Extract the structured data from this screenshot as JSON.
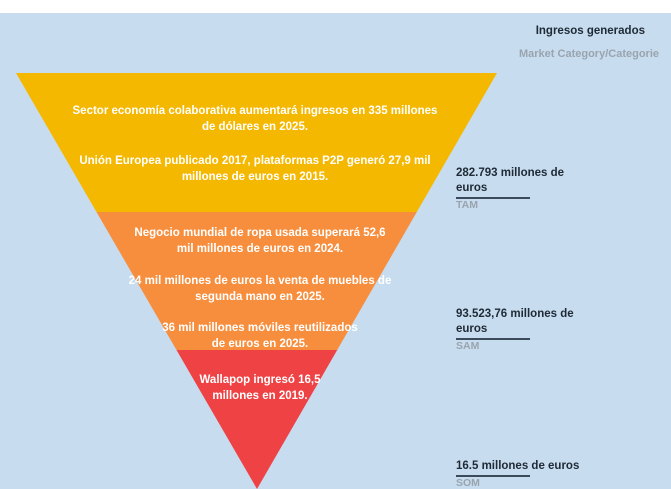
{
  "header": {
    "title": "Ingresos generados",
    "subtitle": "Market Category/Categorie"
  },
  "tiers": [
    {
      "name": "TAM",
      "color": "#f5b800",
      "texts": [
        [
          "Sector economía colaborativa aumentará ingresos en 335 millones",
          "de dólares en 2025."
        ],
        [
          "Unión Europea publicado 2017, plataformas P2P generó 27,9 mil",
          "millones de euros en 2015."
        ]
      ],
      "value": "282.793 millones de euros",
      "value_lines": [
        "282.793 millones de",
        "euros"
      ],
      "label": "TAM"
    },
    {
      "name": "SAM",
      "color": "#f78e3d",
      "texts": [
        [
          "Negocio mundial de ropa usada superará 52,6",
          "mil millones de euros en 2024."
        ],
        [
          "24 mil millones de euros la venta de muebles de",
          "segunda mano en 2025."
        ],
        [
          "36 mil millones móviles reutilizados",
          "de euros en 2025."
        ]
      ],
      "value": "93.523,76 millones de euros",
      "value_lines": [
        "93.523,76 millones de",
        "euros"
      ],
      "label": "SAM"
    },
    {
      "name": "SOM",
      "color": "#ee4244",
      "texts": [
        [
          "Wallapop ingresó 16,5",
          "millones en 2019."
        ]
      ],
      "value": "16.5 millones de euros",
      "value_lines": [
        "16.5 millones de euros"
      ],
      "label": "SOM"
    }
  ]
}
